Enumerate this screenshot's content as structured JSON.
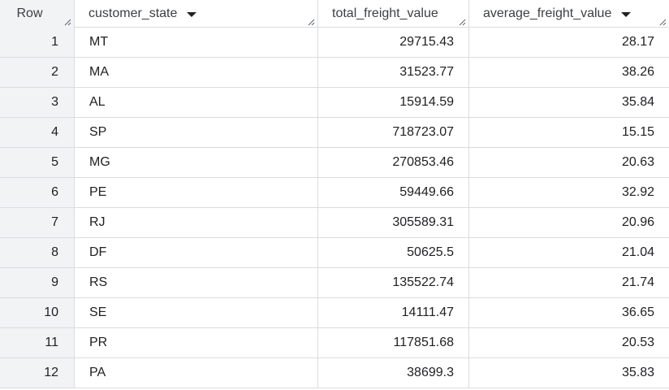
{
  "table": {
    "columns": [
      "Row",
      "customer_state",
      "total_freight_value",
      "average_freight_value"
    ],
    "rows": [
      [
        "1",
        "MT",
        "29715.43",
        "28.17"
      ],
      [
        "2",
        "MA",
        "31523.77",
        "38.26"
      ],
      [
        "3",
        "AL",
        "15914.59",
        "35.84"
      ],
      [
        "4",
        "SP",
        "718723.07",
        "15.15"
      ],
      [
        "5",
        "MG",
        "270853.46",
        "20.63"
      ],
      [
        "6",
        "PE",
        "59449.66",
        "32.92"
      ],
      [
        "7",
        "RJ",
        "305589.31",
        "20.96"
      ],
      [
        "8",
        "DF",
        "50625.5",
        "21.04"
      ],
      [
        "9",
        "RS",
        "135522.74",
        "21.74"
      ],
      [
        "10",
        "SE",
        "14111.47",
        "36.65"
      ],
      [
        "11",
        "PR",
        "117851.68",
        "20.53"
      ],
      [
        "12",
        "PA",
        "38699.3",
        "35.83"
      ]
    ]
  },
  "icons": {
    "sort": "caret-down-icon",
    "resize": "column-resize-handle-icon"
  },
  "colors": {
    "row_number_bg": "#f1f3f4",
    "grid_line": "#dadce0",
    "text": "#202124"
  }
}
